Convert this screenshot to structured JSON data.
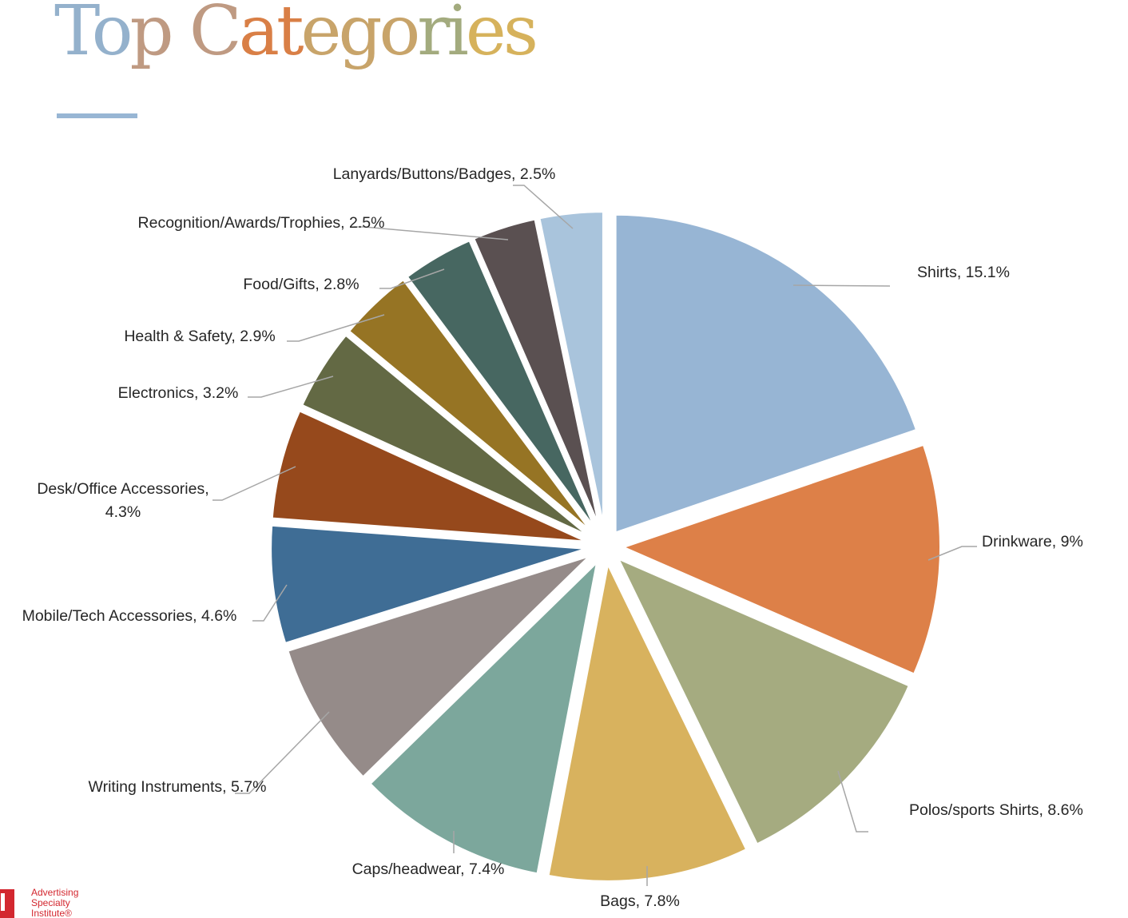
{
  "header": {
    "title": "Top Categories",
    "title_gradient": [
      "#94b1cc",
      "#bf9a82",
      "#d97f46",
      "#c8a46a",
      "#a3ab7e",
      "#d6b25c"
    ],
    "rule_color": "#98b6d4"
  },
  "chart_data": {
    "type": "pie",
    "title": "",
    "label_color": "#262626",
    "leader_color": "#a6a6a6",
    "slices": [
      {
        "label": "Shirts",
        "value": 15.1,
        "display": "Shirts, 15.1%",
        "color": "#97b5d4"
      },
      {
        "label": "Drinkware",
        "value": 9,
        "display": "Drinkware, 9%",
        "color": "#dd8048"
      },
      {
        "label": "Polos/sports Shirts",
        "value": 8.6,
        "display": "Polos/sports Shirts, 8.6%",
        "color": "#a5ab80"
      },
      {
        "label": "Bags",
        "value": 7.8,
        "display": "Bags, 7.8%",
        "color": "#d8b25e"
      },
      {
        "label": "Caps/headwear",
        "value": 7.4,
        "display": "Caps/headwear, 7.4%",
        "color": "#7ca79c"
      },
      {
        "label": "Writing Instruments",
        "value": 5.7,
        "display": "Writing Instruments, 5.7%",
        "color": "#958b89"
      },
      {
        "label": "Mobile/Tech Accessories",
        "value": 4.6,
        "display": "Mobile/Tech Accessories, 4.6%",
        "color": "#3f6d95"
      },
      {
        "label": "Desk/Office Accessories",
        "value": 4.3,
        "display": "Desk/Office Accessories, 4.3%",
        "color": "#96491c"
      },
      {
        "label": "Electronics",
        "value": 3.2,
        "display": "Electronics, 3.2%",
        "color": "#636944"
      },
      {
        "label": "Health & Safety",
        "value": 2.9,
        "display": "Health & Safety, 2.9%",
        "color": "#967424"
      },
      {
        "label": "Food/Gifts",
        "value": 2.8,
        "display": "Food/Gifts, 2.8%",
        "color": "#476761"
      },
      {
        "label": "Recognition/Awards/Trophies",
        "value": 2.5,
        "display": "Recognition/Awards/Trophies, 2.5%",
        "color": "#5a5051"
      },
      {
        "label": "Lanyards/Buttons/Badges",
        "value": 2.5,
        "display": "Lanyards/Buttons/Badges, 2.5%",
        "color": "#a9c4dc"
      }
    ]
  },
  "footer": {
    "logo_lines": [
      "Advertising",
      "Specialty",
      "Institute®"
    ],
    "logo_color": "#d3272f"
  }
}
